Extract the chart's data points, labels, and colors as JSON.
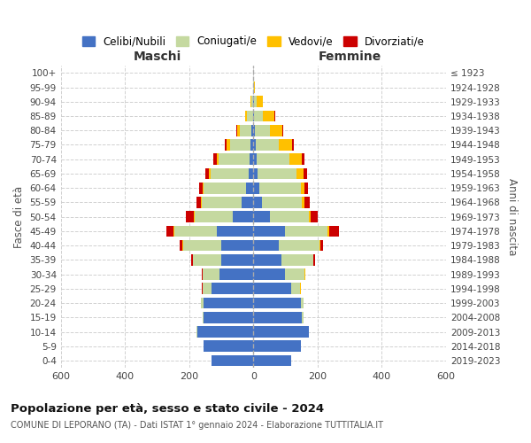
{
  "age_groups": [
    "0-4",
    "5-9",
    "10-14",
    "15-19",
    "20-24",
    "25-29",
    "30-34",
    "35-39",
    "40-44",
    "45-49",
    "50-54",
    "55-59",
    "60-64",
    "65-69",
    "70-74",
    "75-79",
    "80-84",
    "85-89",
    "90-94",
    "95-99",
    "100+"
  ],
  "birth_years": [
    "2019-2023",
    "2014-2018",
    "2009-2013",
    "2004-2008",
    "1999-2003",
    "1994-1998",
    "1989-1993",
    "1984-1988",
    "1979-1983",
    "1974-1978",
    "1969-1973",
    "1964-1968",
    "1959-1963",
    "1954-1958",
    "1949-1953",
    "1944-1948",
    "1939-1943",
    "1934-1938",
    "1929-1933",
    "1924-1928",
    "≤ 1923"
  ],
  "maschi": {
    "celibi": [
      130,
      155,
      175,
      155,
      155,
      130,
      105,
      100,
      100,
      115,
      65,
      38,
      22,
      15,
      12,
      8,
      5,
      2,
      1,
      0,
      0
    ],
    "coniugati": [
      0,
      0,
      2,
      4,
      8,
      28,
      52,
      88,
      120,
      130,
      118,
      122,
      132,
      118,
      95,
      65,
      38,
      18,
      5,
      2,
      0
    ],
    "vedovi": [
      0,
      0,
      0,
      0,
      0,
      1,
      1,
      1,
      2,
      3,
      3,
      4,
      4,
      6,
      8,
      10,
      8,
      6,
      3,
      0,
      0
    ],
    "divorziati": [
      0,
      0,
      0,
      0,
      0,
      1,
      2,
      5,
      8,
      22,
      25,
      12,
      10,
      12,
      10,
      5,
      2,
      0,
      0,
      0,
      0
    ]
  },
  "femmine": {
    "nubili": [
      118,
      148,
      172,
      152,
      148,
      118,
      98,
      88,
      78,
      98,
      52,
      28,
      18,
      12,
      10,
      7,
      4,
      2,
      1,
      0,
      0
    ],
    "coniugate": [
      0,
      0,
      2,
      4,
      8,
      28,
      62,
      98,
      128,
      133,
      122,
      124,
      130,
      122,
      102,
      72,
      48,
      28,
      10,
      2,
      0
    ],
    "vedove": [
      0,
      0,
      0,
      0,
      0,
      1,
      1,
      1,
      2,
      4,
      5,
      8,
      12,
      22,
      38,
      42,
      38,
      35,
      18,
      3,
      0
    ],
    "divorziate": [
      0,
      0,
      0,
      0,
      0,
      1,
      2,
      5,
      10,
      32,
      22,
      15,
      10,
      10,
      8,
      5,
      3,
      2,
      0,
      0,
      0
    ]
  },
  "colors": {
    "celibi": "#4472c4",
    "coniugati": "#c5d9a0",
    "vedovi": "#ffc000",
    "divorziati": "#cc0000"
  },
  "legend_labels": [
    "Celibi/Nubili",
    "Coniugati/e",
    "Vedovi/e",
    "Divorziati/e"
  ],
  "legend_colors": [
    "#4472c4",
    "#c5d9a0",
    "#ffc000",
    "#cc0000"
  ],
  "title": "Popolazione per età, sesso e stato civile - 2024",
  "subtitle": "COMUNE DI LEPORANO (TA) - Dati ISTAT 1° gennaio 2024 - Elaborazione TUTTITALIA.IT",
  "label_maschi": "Maschi",
  "label_femmine": "Femmine",
  "ylabel_left": "Fasce di età",
  "ylabel_right": "Anni di nascita",
  "xlim": 600,
  "bg_color": "#ffffff",
  "grid_color": "#cccccc"
}
